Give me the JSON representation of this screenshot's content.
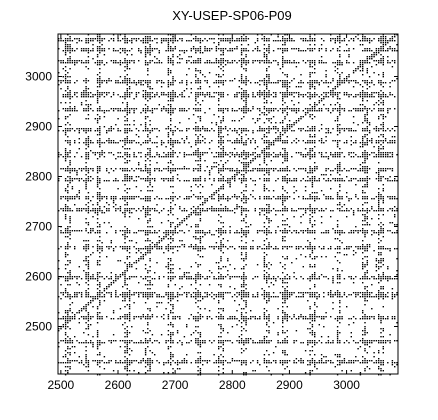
{
  "chart_data": {
    "type": "scatter",
    "title": "XY-USEP-SP06-P09",
    "xlabel": "",
    "ylabel": "",
    "xlim": [
      2495,
      3090
    ],
    "ylim": [
      2405,
      3085
    ],
    "x_ticks": [
      2500,
      2600,
      2700,
      2800,
      2900,
      3000
    ],
    "y_ticks": [
      2500,
      2600,
      2700,
      2800,
      2900,
      3000
    ],
    "x_tick_labels": [
      "2500",
      "2600",
      "2700",
      "2800",
      "2900",
      "3000"
    ],
    "y_tick_labels": [
      "2500",
      "2600",
      "2700",
      "2800",
      "2900",
      "3000"
    ],
    "grid": false,
    "legend": "none",
    "marker_color": "#000000",
    "dense_bands_y": [
      2430,
      2470,
      2520,
      2565,
      2600,
      2660,
      2690,
      2735,
      2760,
      2795,
      2815,
      2845,
      2870,
      2895,
      2935,
      2965,
      2990,
      3030,
      3055,
      3075
    ],
    "dense_bands_x": [
      2510,
      2545,
      2565,
      2615,
      2650,
      2690,
      2740,
      2780,
      2820,
      2860,
      2890,
      2940,
      2985,
      3030,
      3060
    ]
  }
}
